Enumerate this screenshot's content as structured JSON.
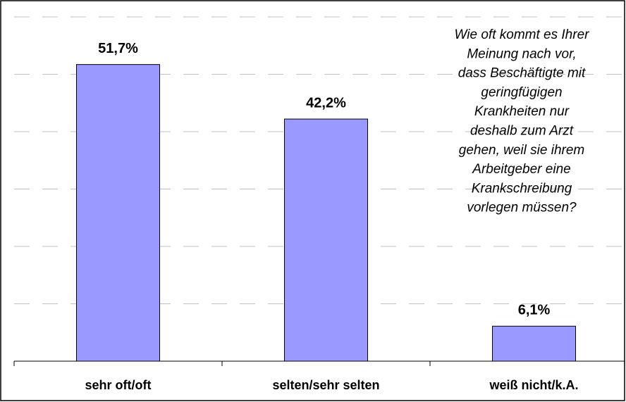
{
  "chart_data": {
    "type": "bar",
    "categories": [
      "sehr oft/oft",
      "selten/sehr selten",
      "weiß nicht/k.A."
    ],
    "values": [
      51.7,
      42.2,
      6.1
    ],
    "value_labels": [
      "51,7%",
      "42,2%",
      "6,1%"
    ],
    "color": "#9999ff",
    "ylim": [
      0,
      60
    ],
    "yticks": [
      10,
      20,
      30,
      40,
      50,
      60
    ],
    "grid": true,
    "annotation": [
      "Wie oft kommt es Ihrer",
      "Meinung nach vor,",
      "dass Beschäftigte mit",
      "geringfügigen",
      "Krankheiten nur",
      "deshalb zum Arzt",
      "gehen, weil sie ihrem",
      "Arbeitgeber eine",
      "Krankschreibung",
      "vorlegen müssen?"
    ]
  }
}
